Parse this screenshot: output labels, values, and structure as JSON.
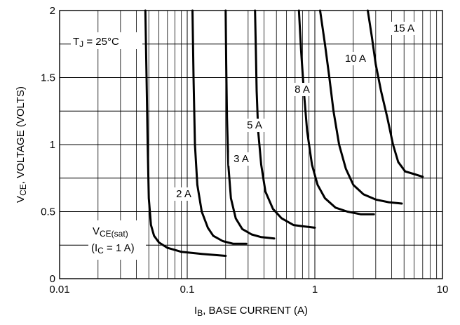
{
  "chart_data": {
    "type": "line",
    "x_scale": "log",
    "xlim": [
      0.01,
      10
    ],
    "ylim": [
      0,
      2
    ],
    "grid": true,
    "x_ticks": [
      "0.01",
      "0.1",
      "1",
      "10"
    ],
    "y_ticks": [
      "0",
      "0.5",
      "1",
      "1.5",
      "2"
    ],
    "xlabel": {
      "main": "I",
      "sub": "B",
      "rest": ", BASE CURRENT (A)"
    },
    "ylabel": {
      "main": "V",
      "sub": "CE",
      "rest": ", VOLTAGE (VOLTS)"
    },
    "annotations": {
      "tj": {
        "main": "T",
        "sub": "J",
        "rest": " = 25°C"
      },
      "vce_sat_line1": {
        "main": "V",
        "sub": "CE(sat)"
      },
      "vce_sat_line2": {
        "pre": "(I",
        "sub": "C",
        "rest": " = 1 A)"
      }
    },
    "series": [
      {
        "name": "(IC = 1 A)",
        "x": [
          0.047,
          0.048,
          0.049,
          0.05,
          0.052,
          0.055,
          0.06,
          0.07,
          0.09,
          0.13,
          0.2
        ],
        "y": [
          2.0,
          1.5,
          1.0,
          0.6,
          0.4,
          0.32,
          0.27,
          0.23,
          0.2,
          0.185,
          0.17
        ]
      },
      {
        "name": "2 A",
        "x": [
          0.11,
          0.112,
          0.115,
          0.12,
          0.13,
          0.145,
          0.16,
          0.19,
          0.23,
          0.29
        ],
        "y": [
          2.0,
          1.5,
          1.0,
          0.7,
          0.5,
          0.38,
          0.32,
          0.28,
          0.26,
          0.26
        ]
      },
      {
        "name": "3 A",
        "x": [
          0.2,
          0.202,
          0.205,
          0.21,
          0.22,
          0.24,
          0.27,
          0.32,
          0.38,
          0.48
        ],
        "y": [
          2.0,
          1.6,
          1.2,
          0.85,
          0.6,
          0.45,
          0.37,
          0.33,
          0.31,
          0.3
        ]
      },
      {
        "name": "5 A",
        "x": [
          0.34,
          0.345,
          0.35,
          0.36,
          0.38,
          0.41,
          0.47,
          0.55,
          0.68,
          0.82,
          1.0
        ],
        "y": [
          2.0,
          1.7,
          1.4,
          1.1,
          0.85,
          0.65,
          0.52,
          0.45,
          0.4,
          0.39,
          0.38
        ]
      },
      {
        "name": "8 A",
        "x": [
          0.75,
          0.78,
          0.82,
          0.87,
          0.95,
          1.05,
          1.2,
          1.45,
          1.8,
          2.3,
          2.9
        ],
        "y": [
          2.0,
          1.7,
          1.4,
          1.1,
          0.85,
          0.7,
          0.6,
          0.53,
          0.5,
          0.48,
          0.48
        ]
      },
      {
        "name": "10 A",
        "x": [
          1.1,
          1.2,
          1.3,
          1.4,
          1.55,
          1.75,
          2.0,
          2.4,
          3.0,
          3.8,
          4.8
        ],
        "y": [
          2.0,
          1.75,
          1.5,
          1.25,
          1.0,
          0.82,
          0.7,
          0.63,
          0.59,
          0.57,
          0.56
        ]
      },
      {
        "name": "15 A",
        "x": [
          2.6,
          2.8,
          3.0,
          3.3,
          3.7,
          4.1,
          4.5,
          5.1,
          6.0,
          7.0
        ],
        "y": [
          2.0,
          1.8,
          1.6,
          1.4,
          1.2,
          1.0,
          0.87,
          0.8,
          0.78,
          0.76
        ]
      }
    ],
    "curve_labels": [
      "2 A",
      "3 A",
      "5 A",
      "8 A",
      "10 A",
      "15 A"
    ]
  }
}
